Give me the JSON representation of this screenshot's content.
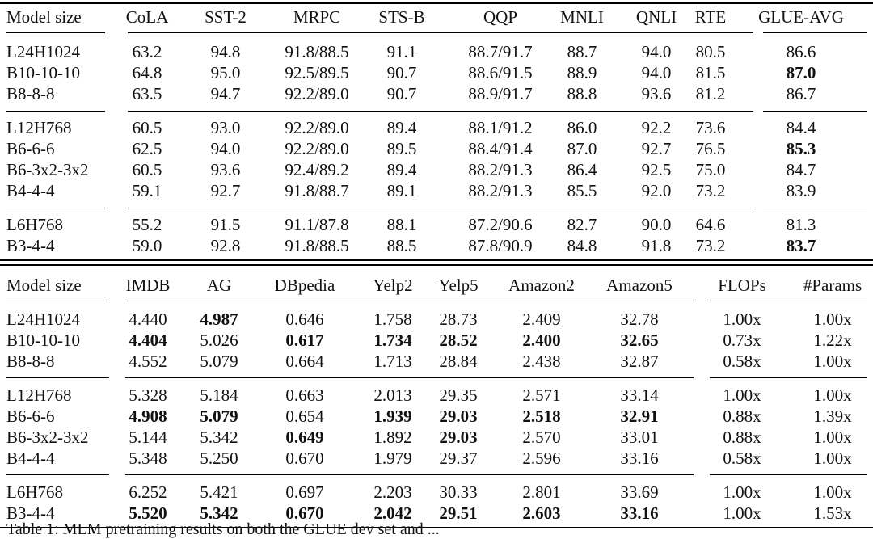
{
  "table_top": {
    "headers": [
      "Model size",
      "CoLA",
      "SST-2",
      "MRPC",
      "STS-B",
      "QQP",
      "MNLI",
      "QNLI",
      "RTE",
      "GLUE-AVG"
    ],
    "groups": [
      [
        {
          "model": "L24H1024",
          "values": [
            "63.2",
            "94.8",
            "91.8/88.5",
            "91.1",
            "88.7/91.7",
            "88.7",
            "94.0",
            "80.5",
            "86.6"
          ],
          "bold": []
        },
        {
          "model": "B10-10-10",
          "values": [
            "64.8",
            "95.0",
            "92.5/89.5",
            "90.7",
            "88.6/91.5",
            "88.9",
            "94.0",
            "81.5",
            "87.0"
          ],
          "bold": [
            8
          ]
        },
        {
          "model": "B8-8-8",
          "values": [
            "63.5",
            "94.7",
            "92.2/89.0",
            "90.7",
            "88.9/91.7",
            "88.8",
            "93.6",
            "81.2",
            "86.7"
          ],
          "bold": []
        }
      ],
      [
        {
          "model": "L12H768",
          "values": [
            "60.5",
            "93.0",
            "92.2/89.0",
            "89.4",
            "88.1/91.2",
            "86.0",
            "92.2",
            "73.6",
            "84.4"
          ],
          "bold": []
        },
        {
          "model": "B6-6-6",
          "values": [
            "62.5",
            "94.0",
            "92.2/89.0",
            "89.5",
            "88.4/91.4",
            "87.0",
            "92.7",
            "76.5",
            "85.3"
          ],
          "bold": [
            8
          ]
        },
        {
          "model": "B6-3x2-3x2",
          "values": [
            "60.5",
            "93.6",
            "92.4/89.2",
            "89.4",
            "88.2/91.3",
            "86.4",
            "92.5",
            "75.0",
            "84.7"
          ],
          "bold": []
        },
        {
          "model": "B4-4-4",
          "values": [
            "59.1",
            "92.7",
            "91.8/88.7",
            "89.1",
            "88.2/91.3",
            "85.5",
            "92.0",
            "73.2",
            "83.9"
          ],
          "bold": []
        }
      ],
      [
        {
          "model": "L6H768",
          "values": [
            "55.2",
            "91.5",
            "91.1/87.8",
            "88.1",
            "87.2/90.6",
            "82.7",
            "90.0",
            "64.6",
            "81.3"
          ],
          "bold": []
        },
        {
          "model": "B3-4-4",
          "values": [
            "59.0",
            "92.8",
            "91.8/88.5",
            "88.5",
            "87.8/90.9",
            "84.8",
            "91.8",
            "73.2",
            "83.7"
          ],
          "bold": [
            8
          ]
        }
      ]
    ]
  },
  "table_bottom": {
    "headers": [
      "Model size",
      "IMDB",
      "AG",
      "DBpedia",
      "Yelp2",
      "Yelp5",
      "Amazon2",
      "Amazon5",
      "FLOPs",
      "#Params"
    ],
    "groups": [
      [
        {
          "model": "L24H1024",
          "values": [
            "4.440",
            "4.987",
            "0.646",
            "1.758",
            "28.73",
            "2.409",
            "32.78",
            "1.00x",
            "1.00x"
          ],
          "bold": [
            1
          ]
        },
        {
          "model": "B10-10-10",
          "values": [
            "4.404",
            "5.026",
            "0.617",
            "1.734",
            "28.52",
            "2.400",
            "32.65",
            "0.73x",
            "1.22x"
          ],
          "bold": [
            0,
            2,
            3,
            4,
            5,
            6
          ]
        },
        {
          "model": "B8-8-8",
          "values": [
            "4.552",
            "5.079",
            "0.664",
            "1.713",
            "28.84",
            "2.438",
            "32.87",
            "0.58x",
            "1.00x"
          ],
          "bold": []
        }
      ],
      [
        {
          "model": "L12H768",
          "values": [
            "5.328",
            "5.184",
            "0.663",
            "2.013",
            "29.35",
            "2.571",
            "33.14",
            "1.00x",
            "1.00x"
          ],
          "bold": []
        },
        {
          "model": "B6-6-6",
          "values": [
            "4.908",
            "5.079",
            "0.654",
            "1.939",
            "29.03",
            "2.518",
            "32.91",
            "0.88x",
            "1.39x"
          ],
          "bold": [
            0,
            1,
            3,
            4,
            5,
            6
          ]
        },
        {
          "model": "B6-3x2-3x2",
          "values": [
            "5.144",
            "5.342",
            "0.649",
            "1.892",
            "29.03",
            "2.570",
            "33.01",
            "0.88x",
            "1.00x"
          ],
          "bold": [
            2,
            4
          ]
        },
        {
          "model": "B4-4-4",
          "values": [
            "5.348",
            "5.250",
            "0.670",
            "1.979",
            "29.37",
            "2.596",
            "33.16",
            "0.58x",
            "1.00x"
          ],
          "bold": []
        }
      ],
      [
        {
          "model": "L6H768",
          "values": [
            "6.252",
            "5.421",
            "0.697",
            "2.203",
            "30.33",
            "2.801",
            "33.69",
            "1.00x",
            "1.00x"
          ],
          "bold": []
        },
        {
          "model": "B3-4-4",
          "values": [
            "5.520",
            "5.342",
            "0.670",
            "2.042",
            "29.51",
            "2.603",
            "33.16",
            "1.00x",
            "1.53x"
          ],
          "bold": [
            0,
            1,
            2,
            3,
            4,
            5,
            6
          ]
        }
      ]
    ]
  },
  "caption": "Table 1: MLM pretraining results on both the GLUE dev set and ..."
}
